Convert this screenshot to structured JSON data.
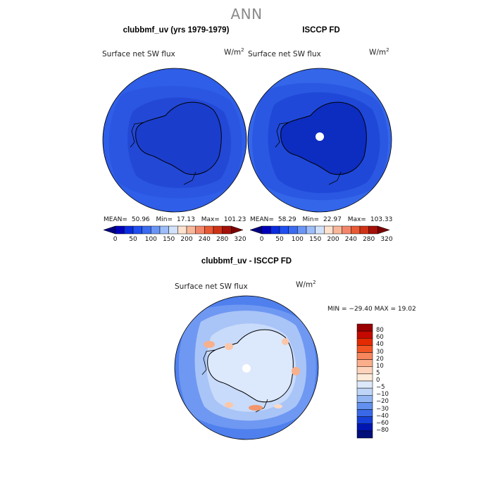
{
  "page": {
    "title": "ANN"
  },
  "chart_data": [
    {
      "type": "heatmap",
      "title": "clubbmf_uv (yrs 1979-1979)",
      "variable": "Surface net SW flux",
      "units": "W/m",
      "units_exp": "2",
      "projection": "south polar stereographic",
      "stats": {
        "mean_label": "MEAN=",
        "mean": "50.96",
        "min_label": "Min=",
        "min": "17.13",
        "max_label": "Max=",
        "max": "101.23"
      },
      "colorbar": {
        "orientation": "horizontal",
        "ticks": [
          "0",
          "50",
          "100",
          "150",
          "200",
          "240",
          "280",
          "320"
        ],
        "colors": [
          "#00007f",
          "#0000b8",
          "#0a2ce0",
          "#1f4ff0",
          "#3a6bf0",
          "#6b95f5",
          "#9dbdf8",
          "#d2e2fb",
          "#fde2cf",
          "#f9b79a",
          "#f2866a",
          "#e85a35",
          "#cf3317",
          "#a51008",
          "#7a0000"
        ]
      },
      "background_color": "#2f5ee8"
    },
    {
      "type": "heatmap",
      "title": "ISCCP FD",
      "variable": "Surface net SW flux",
      "units": "W/m",
      "units_exp": "2",
      "projection": "south polar stereographic",
      "stats": {
        "mean_label": "MEAN=",
        "mean": "58.29",
        "min_label": "Min=",
        "min": "22.97",
        "max_label": "Max=",
        "max": "103.33"
      },
      "colorbar": {
        "orientation": "horizontal",
        "ticks": [
          "0",
          "50",
          "100",
          "150",
          "200",
          "240",
          "280",
          "320"
        ],
        "colors": [
          "#00007f",
          "#0000b8",
          "#0a2ce0",
          "#1f4ff0",
          "#3a6bf0",
          "#6b95f5",
          "#9dbdf8",
          "#d2e2fb",
          "#fde2cf",
          "#f9b79a",
          "#f2866a",
          "#e85a35",
          "#cf3317",
          "#a51008",
          "#7a0000"
        ]
      },
      "background_color": "#2f5ee8"
    },
    {
      "type": "heatmap",
      "title": "clubbmf_uv - ISCCP FD",
      "variable": "Surface net SW flux",
      "units": "W/m",
      "units_exp": "2",
      "projection": "south polar stereographic",
      "stats": {
        "text": "MIN = −29.40 MAX =  19.02"
      },
      "colorbar": {
        "orientation": "vertical",
        "ticks": [
          "80",
          "60",
          "40",
          "30",
          "20",
          "10",
          "5",
          "0",
          "−5",
          "−10",
          "−20",
          "−30",
          "−40",
          "−60",
          "−80"
        ],
        "colors": [
          "#9a0000",
          "#c40a00",
          "#e42a00",
          "#f25524",
          "#f7865c",
          "#fbae8c",
          "#fdd3bc",
          "#fdebd9",
          "#dde9fb",
          "#bfd5f7",
          "#93b6f3",
          "#6290ee",
          "#3a69e8",
          "#1640d8",
          "#0016b0",
          "#000f7a"
        ]
      },
      "background_color": "#4f80ee"
    }
  ]
}
